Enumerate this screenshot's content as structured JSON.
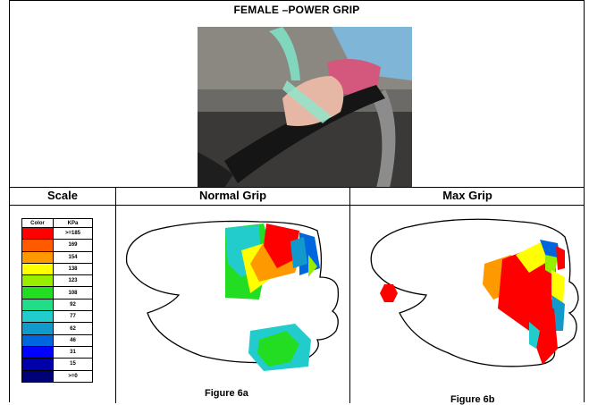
{
  "title": "FEMALE –POWER GRIP",
  "headers": {
    "scale": "Scale",
    "normal": "Normal Grip",
    "max": "Max Grip"
  },
  "scale_table": {
    "col_color": "Color",
    "col_kpa": "KPa",
    "rows": [
      {
        "color": "#ff0000",
        "kpa": ">=185"
      },
      {
        "color": "#ff5a00",
        "kpa": "169"
      },
      {
        "color": "#ff9900",
        "kpa": "154"
      },
      {
        "color": "#ffff00",
        "kpa": "138"
      },
      {
        "color": "#99ee00",
        "kpa": "123"
      },
      {
        "color": "#22dd22",
        "kpa": "108"
      },
      {
        "color": "#22dd88",
        "kpa": "92"
      },
      {
        "color": "#22cccc",
        "kpa": "77"
      },
      {
        "color": "#1199cc",
        "kpa": "62"
      },
      {
        "color": "#0066dd",
        "kpa": "46"
      },
      {
        "color": "#0000ff",
        "kpa": "31"
      },
      {
        "color": "#0000aa",
        "kpa": "15"
      },
      {
        "color": "#000077",
        "kpa": ">=0"
      }
    ]
  },
  "captions": {
    "fig_a": "Figure 6a",
    "fig_b": "Figure 6b"
  }
}
